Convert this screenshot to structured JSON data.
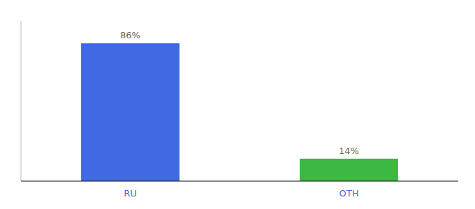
{
  "chart_data": {
    "type": "bar",
    "categories": [
      "RU",
      "OTH"
    ],
    "values": [
      86,
      14
    ],
    "value_labels": [
      "86%",
      "14%"
    ],
    "colors": [
      "#4169e1",
      "#3cb843"
    ],
    "ylim": [
      0,
      100
    ],
    "yticks": [],
    "tick_labels": "x",
    "data_labels": true
  }
}
